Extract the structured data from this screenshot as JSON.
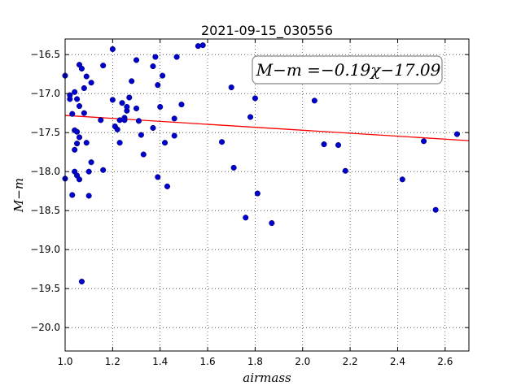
{
  "chart_data": {
    "type": "scatter",
    "title": "2021-09-15_030556",
    "xlabel": "airmass",
    "ylabel": "M−m",
    "xlim": [
      1.0,
      2.7
    ],
    "ylim": [
      -20.3,
      -16.3
    ],
    "y_inverted": false,
    "grid": true,
    "x_ticks": [
      1.0,
      1.2,
      1.4,
      1.6,
      1.8,
      2.0,
      2.2,
      2.4,
      2.6
    ],
    "x_tick_labels": [
      "1.0",
      "1.2",
      "1.4",
      "1.6",
      "1.8",
      "2.0",
      "2.2",
      "2.4",
      "2.6"
    ],
    "y_ticks": [
      -16.5,
      -17.0,
      -17.5,
      -18.0,
      -18.5,
      -19.0,
      -19.5,
      -20.0
    ],
    "y_tick_labels": [
      "−16.5",
      "−17.0",
      "−17.5",
      "−18.0",
      "−18.5",
      "−19.0",
      "−19.5",
      "−20.0"
    ],
    "annotation": "M−m =−0.19χ−17.09",
    "fit": {
      "slope": -0.19,
      "intercept": -17.09,
      "color": "#ff0000"
    },
    "point_color": "#0000cc",
    "series": [
      {
        "x": [
          1.0,
          1.0,
          1.02,
          1.02,
          1.03,
          1.03,
          1.04,
          1.04,
          1.04,
          1.04,
          1.05,
          1.05,
          1.05,
          1.05,
          1.06,
          1.06,
          1.06,
          1.06,
          1.07,
          1.07,
          1.08,
          1.08,
          1.09,
          1.09,
          1.1,
          1.1,
          1.11,
          1.11,
          1.15,
          1.16,
          1.16,
          1.2,
          1.2,
          1.21,
          1.22,
          1.23,
          1.23,
          1.24,
          1.25,
          1.25,
          1.26,
          1.26,
          1.27,
          1.28,
          1.3,
          1.3,
          1.31,
          1.32,
          1.33,
          1.37,
          1.37,
          1.38,
          1.39,
          1.39,
          1.4,
          1.41,
          1.42,
          1.43,
          1.46,
          1.46,
          1.47,
          1.49,
          1.56,
          1.58,
          1.66,
          1.7,
          1.71,
          1.76,
          1.78,
          1.8,
          1.81,
          1.87,
          2.05,
          2.09,
          2.15,
          2.18,
          2.42,
          2.51,
          2.56,
          2.65
        ],
        "y": [
          -16.77,
          -18.09,
          -17.02,
          -17.07,
          -17.26,
          -18.3,
          -16.98,
          -17.47,
          -17.72,
          -18.0,
          -17.07,
          -17.49,
          -18.05,
          -17.64,
          -16.63,
          -17.16,
          -17.56,
          -18.1,
          -16.68,
          -19.41,
          -16.93,
          -17.25,
          -16.78,
          -17.63,
          -18.0,
          -18.31,
          -16.86,
          -17.88,
          -17.34,
          -16.64,
          -17.98,
          -16.43,
          -17.08,
          -17.42,
          -17.46,
          -17.63,
          -17.34,
          -17.12,
          -17.31,
          -17.34,
          -17.22,
          -17.17,
          -17.05,
          -16.84,
          -16.57,
          -17.19,
          -17.35,
          -17.53,
          -17.78,
          -16.65,
          -17.44,
          -16.53,
          -16.89,
          -18.07,
          -17.17,
          -16.77,
          -17.63,
          -18.19,
          -17.32,
          -17.54,
          -16.53,
          -17.14,
          -16.39,
          -16.38,
          -17.62,
          -16.92,
          -17.95,
          -18.59,
          -17.3,
          -17.06,
          -18.28,
          -18.66,
          -17.09,
          -17.65,
          -17.66,
          -17.99,
          -18.1,
          -17.61,
          -18.49,
          -17.52
        ]
      }
    ]
  }
}
